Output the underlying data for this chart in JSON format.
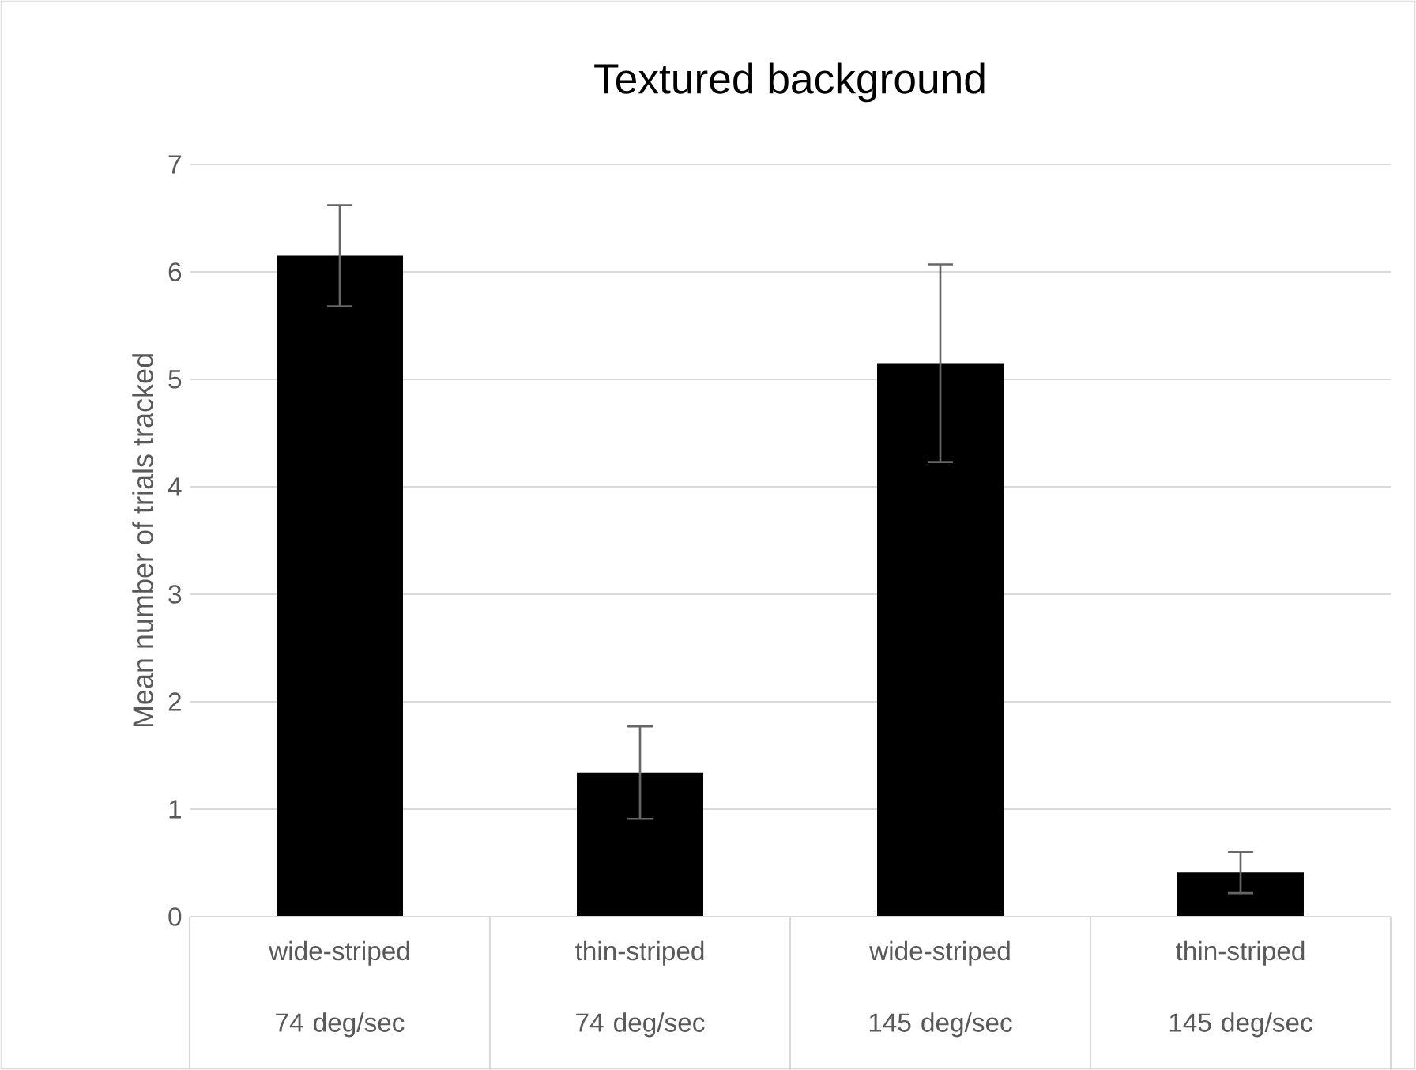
{
  "chart_data": {
    "type": "bar",
    "title": "Textured background",
    "ylabel": "Mean number of trials tracked",
    "categories": [
      "wide-striped 74 deg/sec",
      "thin-striped 74 deg/sec",
      "wide-striped 145 deg/sec",
      "thin-striped 145 deg/sec"
    ],
    "values": [
      6.15,
      1.34,
      5.15,
      0.41
    ],
    "errors": [
      0.47,
      0.43,
      0.92,
      0.19
    ],
    "color": "#000000",
    "ylim": [
      0,
      7
    ],
    "yticks": [
      0,
      1,
      2,
      3,
      4,
      5,
      6,
      7
    ],
    "grid": "y"
  }
}
